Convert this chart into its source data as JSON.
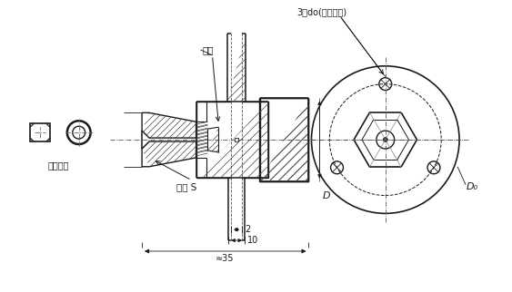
{
  "bg_color": "#ffffff",
  "line_color": "#1a1a1a",
  "title": "3孔do(等分圆周)",
  "label_ka_tao": "卡套",
  "label_gu_ding": "固定卡套",
  "label_ban_shou": "板手 S",
  "label_D": "D",
  "label_D0": "D₀",
  "label_dim2": "2",
  "label_dim10": "10",
  "label_dim35": "≈35",
  "figsize": [
    5.63,
    3.22
  ],
  "dpi": 100
}
